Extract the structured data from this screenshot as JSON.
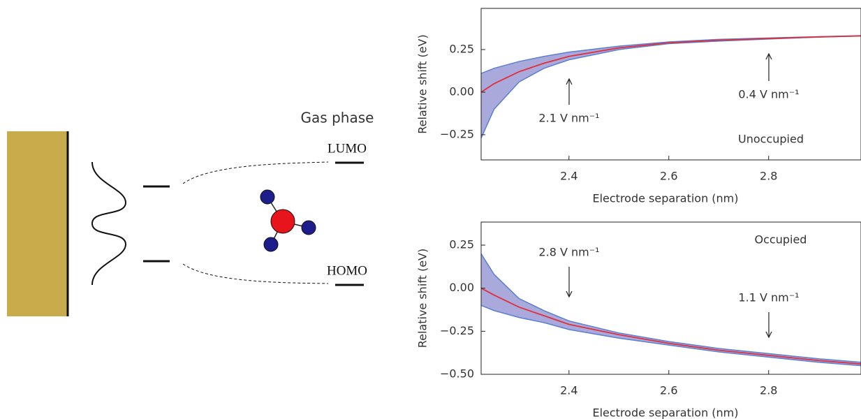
{
  "diagram": {
    "gas_phase": "Gas phase",
    "lumo": "LUMO",
    "homo": "HOMO"
  },
  "chart_data": [
    {
      "type": "line",
      "xlabel": "Electrode separation (nm)",
      "ylabel": "Relative shift (eV)",
      "x": [
        2.224,
        2.25,
        2.3,
        2.35,
        2.4,
        2.5,
        2.6,
        2.7,
        2.8,
        2.9,
        2.985
      ],
      "series": [
        {
          "color": "#e0303a",
          "values": [
            0.0,
            0.05,
            0.12,
            0.17,
            0.21,
            0.26,
            0.29,
            0.305,
            0.315,
            0.325,
            0.33
          ]
        }
      ],
      "band": {
        "color": "#8c8cd0",
        "edge_color": "#5b7fd0",
        "upper": [
          0.11,
          0.14,
          0.18,
          0.21,
          0.235,
          0.27,
          0.295,
          0.31,
          0.318,
          0.326,
          0.332
        ],
        "lower": [
          -0.27,
          -0.1,
          0.06,
          0.14,
          0.19,
          0.25,
          0.285,
          0.3,
          0.312,
          0.323,
          0.33
        ]
      },
      "xlim": [
        2.224,
        2.985
      ],
      "ylim": [
        -0.398,
        0.492
      ],
      "xticks": [
        2.4,
        2.6,
        2.8
      ],
      "yticks": [
        {
          "value": -0.25,
          "label": "−0.25"
        },
        {
          "value": 0,
          "label": "0.00"
        },
        0.25
      ],
      "annotations": [
        "2.1 V nm⁻¹",
        "0.4 V nm⁻¹",
        "Unoccupied"
      ]
    },
    {
      "type": "line",
      "xlabel": "Electrode separation (nm)",
      "ylabel": "Relative shift (eV)",
      "x": [
        2.224,
        2.25,
        2.3,
        2.35,
        2.4,
        2.5,
        2.6,
        2.7,
        2.8,
        2.9,
        2.985
      ],
      "series": [
        {
          "color": "#e0303a",
          "values": [
            0.0,
            -0.04,
            -0.11,
            -0.16,
            -0.21,
            -0.27,
            -0.32,
            -0.36,
            -0.39,
            -0.42,
            -0.44
          ]
        }
      ],
      "band": {
        "color": "#8c8cd0",
        "edge_color": "#5b7fd0",
        "upper": [
          0.2,
          0.08,
          -0.06,
          -0.13,
          -0.19,
          -0.26,
          -0.31,
          -0.35,
          -0.38,
          -0.41,
          -0.43
        ],
        "lower": [
          -0.1,
          -0.13,
          -0.17,
          -0.2,
          -0.24,
          -0.29,
          -0.33,
          -0.37,
          -0.4,
          -0.43,
          -0.45
        ]
      },
      "xlim": [
        2.224,
        2.985
      ],
      "ylim": [
        -0.5,
        0.384
      ],
      "xticks": [
        2.4,
        2.6,
        2.8
      ],
      "yticks": [
        {
          "value": -0.5,
          "label": "−0.50"
        },
        {
          "value": -0.25,
          "label": "−0.25"
        },
        {
          "value": 0,
          "label": "0.00"
        },
        0.25
      ],
      "annotations": [
        "Occupied",
        "2.8 V nm⁻¹",
        "1.1 V nm⁻¹"
      ]
    }
  ]
}
